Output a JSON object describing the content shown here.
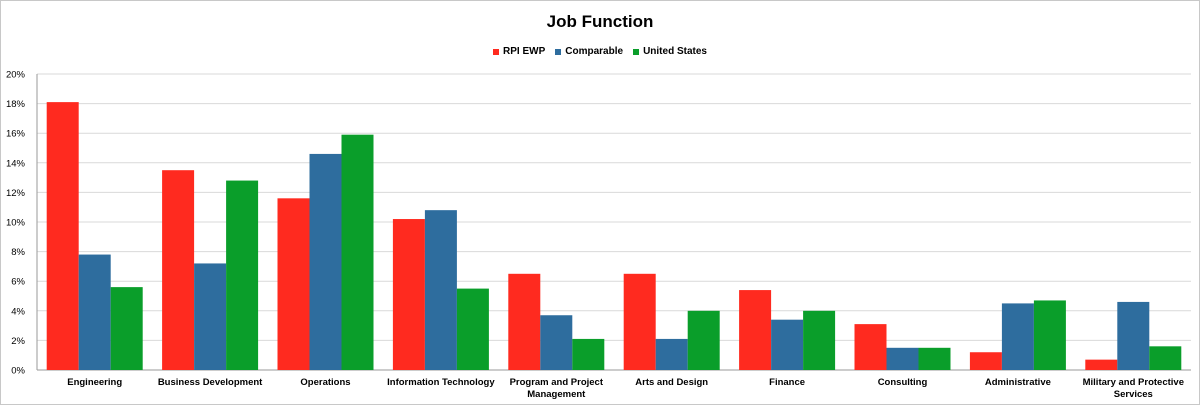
{
  "chart_data": {
    "type": "bar",
    "title": "Job Function",
    "xlabel": "",
    "ylabel": "",
    "ylim": [
      0,
      20
    ],
    "y_tick_format": "percent",
    "y_ticks": [
      "0%",
      "2%",
      "4%",
      "6%",
      "8%",
      "10%",
      "12%",
      "14%",
      "16%",
      "18%",
      "20%"
    ],
    "grid": true,
    "legend_position": "top-center",
    "categories": [
      [
        "Engineering"
      ],
      [
        "Business Development"
      ],
      [
        "Operations"
      ],
      [
        "Information Technology"
      ],
      [
        "Program and Project",
        "Management"
      ],
      [
        "Arts and Design"
      ],
      [
        "Finance"
      ],
      [
        "Consulting"
      ],
      [
        "Administrative"
      ],
      [
        "Military and Protective",
        "Services"
      ]
    ],
    "series": [
      {
        "name": "RPI EWP",
        "color": "#ff2a1f",
        "values": [
          18.1,
          13.5,
          11.6,
          10.2,
          6.5,
          6.5,
          5.4,
          3.1,
          1.2,
          0.7
        ]
      },
      {
        "name": "Comparable",
        "color": "#2e6d9e",
        "values": [
          7.8,
          7.2,
          14.6,
          10.8,
          3.7,
          2.1,
          3.4,
          1.5,
          4.5,
          4.6
        ]
      },
      {
        "name": "United States",
        "color": "#0a9e2a",
        "values": [
          5.6,
          12.8,
          15.9,
          5.5,
          2.1,
          4.0,
          4.0,
          1.5,
          4.7,
          1.6
        ]
      }
    ]
  }
}
